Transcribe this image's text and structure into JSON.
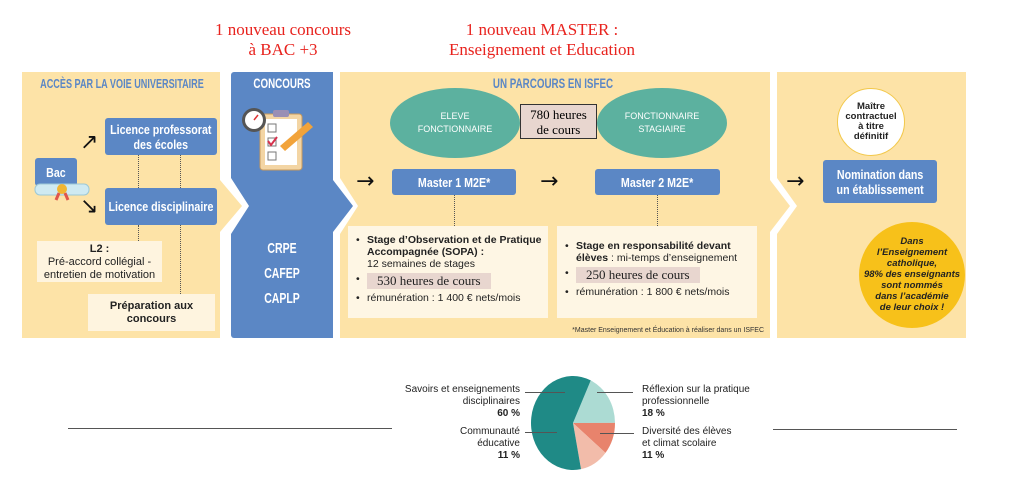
{
  "annotations": {
    "concours_new": [
      "1 nouveau concours",
      "à BAC +3"
    ],
    "master_new": [
      "1 nouveau MASTER :",
      "Enseignement et Education"
    ]
  },
  "colors": {
    "panel": "#fde3a7",
    "blue": "#5b87c5",
    "teal": "#5cb19f",
    "red": "#e8231e",
    "yellow": "#f7c11a"
  },
  "university": {
    "title": "ACCÈS PAR LA VOIE UNIVERSITAIRE",
    "bac": "Bac",
    "licence_prof": [
      "Licence professorat",
      "des écoles"
    ],
    "licence_disc": "Licence disciplinaire",
    "l2_title": "L2 :",
    "l2_text": [
      "Pré-accord collégial -",
      "entretien de motivation"
    ],
    "prep": [
      "Préparation aux",
      "concours"
    ]
  },
  "concours": {
    "title": "CONCOURS",
    "items": [
      "CRPE",
      "CAFEP",
      "CAPLP"
    ]
  },
  "isfec": {
    "title": "UN PARCOURS EN ISFEC",
    "ellipse1": [
      "ELEVE",
      "FONCTIONNAIRE"
    ],
    "ellipse2": [
      "FONCTIONNAIRE",
      "STAGIAIRE"
    ],
    "hours": [
      "780 heures",
      "de cours"
    ],
    "master1": "Master 1 M2E*",
    "master2": "Master 2 M2E*",
    "m1_stage_bold": "Stage d’Observation et de Pratique Accompagnée (SOPA) :",
    "m1_stage": "12 semaines de stages",
    "m1_hours": "530 heures de cours",
    "m1_pay": "rémunération : 1 400 € nets/mois",
    "m2_stage_bold": "Stage en responsabilité devant élèves",
    "m2_stage": " : mi-temps d’enseignement",
    "m2_hours": "250 heures de cours",
    "m2_pay": "rémunération : 1 800 € nets/mois",
    "footnote": "*Master Enseignement et Éducation à réaliser dans un ISFEC"
  },
  "nomination": {
    "badge": [
      "Maître",
      "contractuel",
      "à titre",
      "définitif"
    ],
    "box": [
      "Nomination dans",
      "un établissement"
    ],
    "fact": [
      "Dans",
      "l’Enseignement",
      "catholique,",
      "98% des enseignants",
      "sont nommés",
      "dans l’académie",
      "de leur choix !"
    ]
  },
  "chart_data": {
    "type": "pie",
    "slices": [
      {
        "label": "Savoirs et enseignements disciplinaires",
        "value": 60,
        "pct": "60 %",
        "color": "#1f8a86"
      },
      {
        "label": "Réflexion sur la pratique professionnelle",
        "value": 18,
        "pct": "18 %",
        "color": "#acdbd3"
      },
      {
        "label": "Diversité des élèves et climat scolaire",
        "value": 11,
        "pct": "11 %",
        "color": "#e8836c"
      },
      {
        "label": "Communauté éducative",
        "value": 11,
        "pct": "11 %",
        "color": "#f2bcaa"
      }
    ]
  }
}
